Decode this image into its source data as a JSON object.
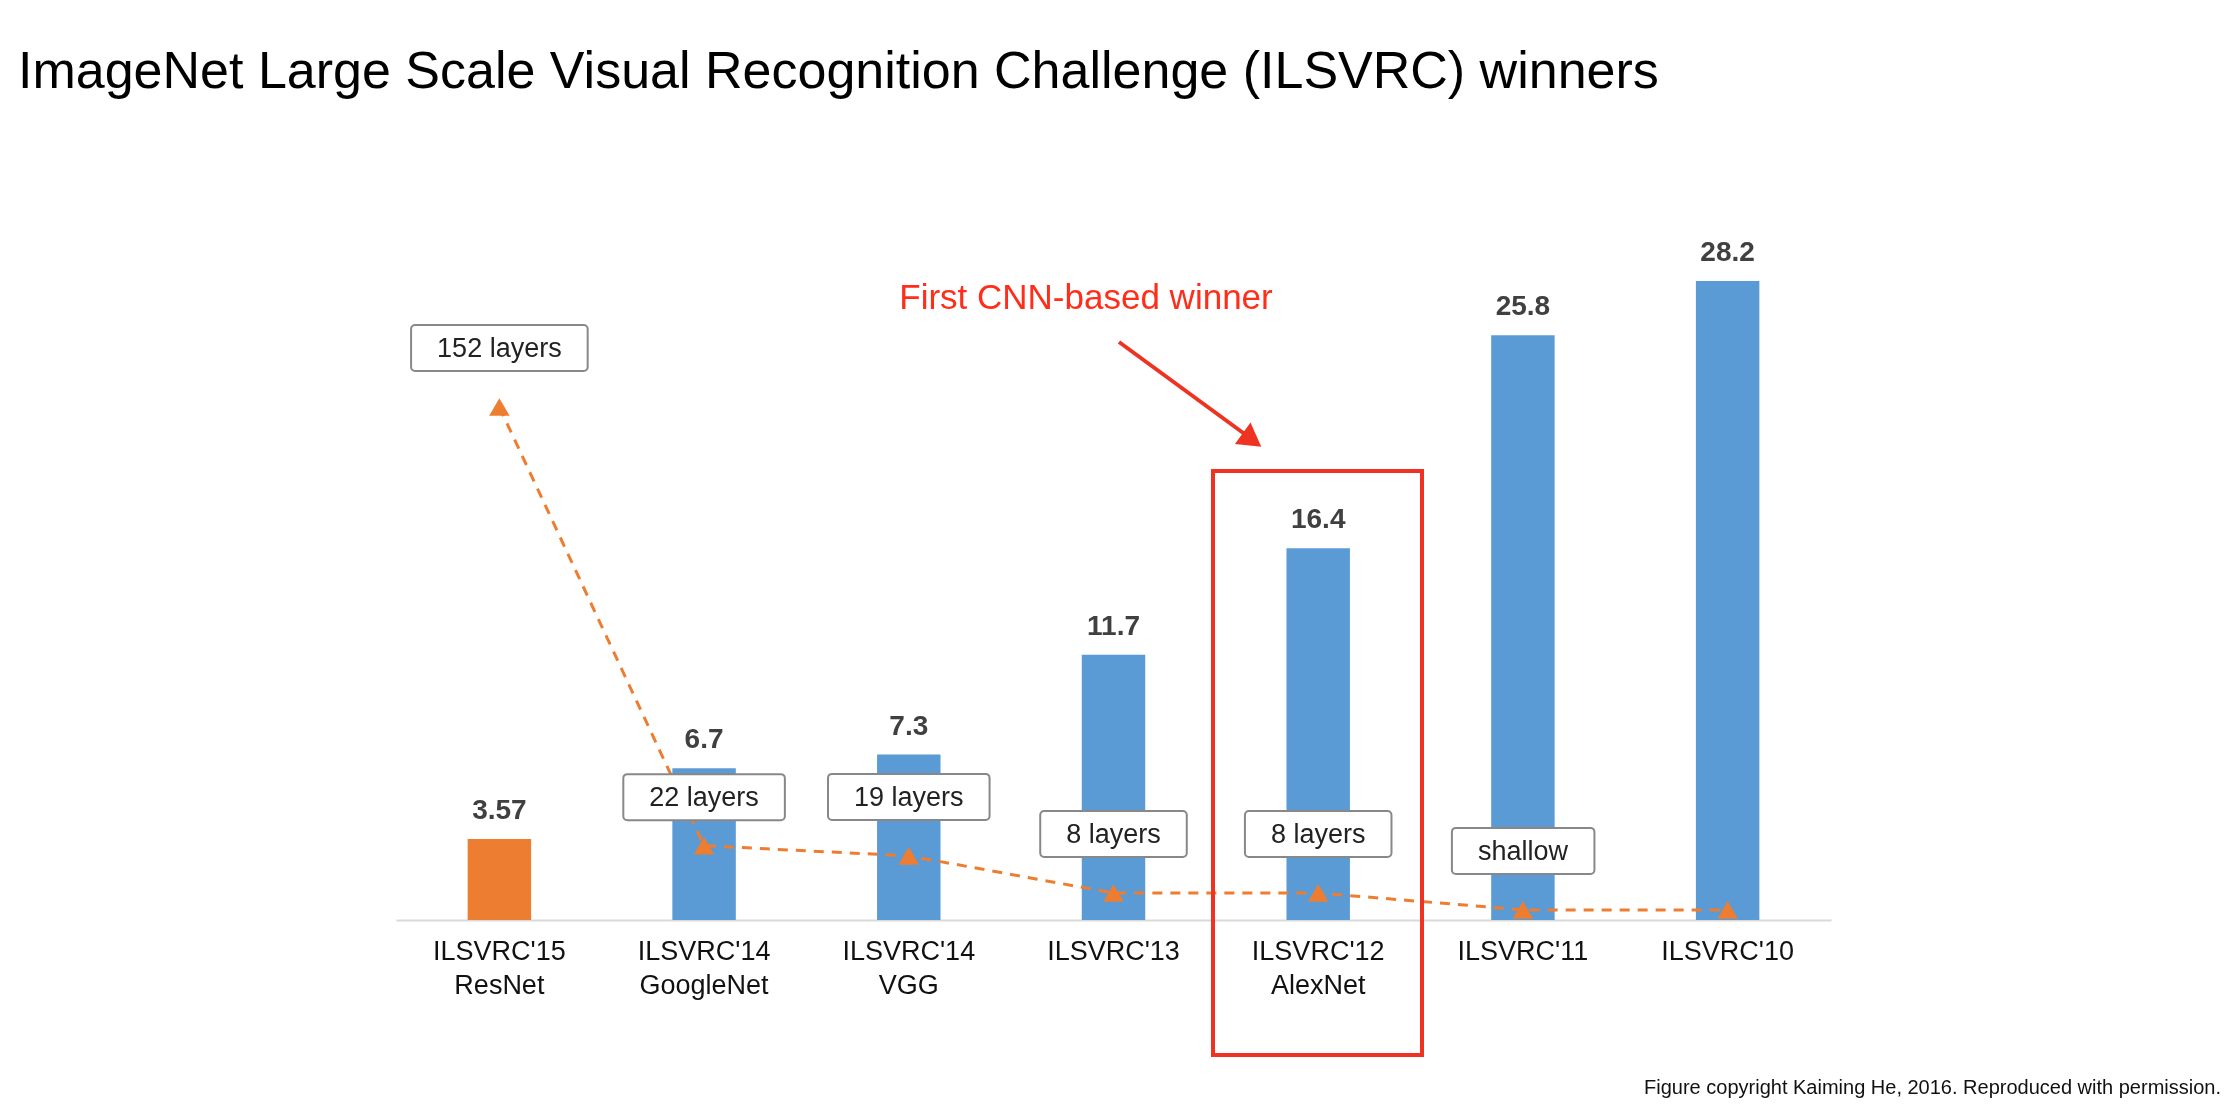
{
  "chart_data": {
    "type": "bar",
    "title": "ImageNet Large Scale Visual Recognition Challenge (ILSVRC) winners",
    "categories": [
      "ILSVRC'15\nResNet",
      "ILSVRC'14\nGoogleNet",
      "ILSVRC'14\nVGG",
      "ILSVRC'13",
      "ILSVRC'12\nAlexNet",
      "ILSVRC'11",
      "ILSVRC'10"
    ],
    "series": [
      {
        "colors": [
          "#ed7d31",
          "#5b9bd5",
          "#5b9bd5",
          "#5b9bd5",
          "#5b9bd5",
          "#5b9bd5",
          "#5b9bd5"
        ],
        "values": [
          3.57,
          6.7,
          7.3,
          11.7,
          16.4,
          25.8,
          28.2
        ]
      },
      {
        "type": "line",
        "axis": "y2",
        "color": "#ed7d31",
        "values": [
          152,
          22,
          19,
          8,
          8,
          3,
          3
        ],
        "value_labels": [
          "152 layers",
          "22 layers",
          "19 layers",
          "8 layers",
          "8 layers",
          "shallow",
          null
        ]
      }
    ],
    "data_labels": true,
    "marker": "triangle",
    "line_style": "dashed",
    "annotations": [
      "First CNN-based winner",
      "Figure copyright Kaiming He, 2016. Reproduced with permission."
    ]
  }
}
